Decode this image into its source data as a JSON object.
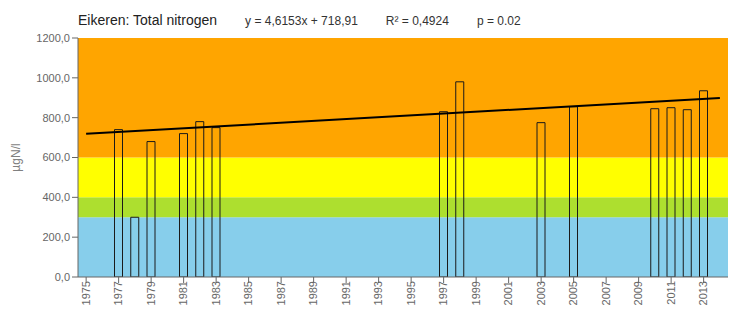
{
  "chart_data": {
    "type": "bar",
    "title": "Eikeren: Total nitrogen",
    "annotations": [
      "y = 4,6153x + 718,91",
      "R² = 0,4924",
      "p = 0.02"
    ],
    "ylabel": "µgN/l",
    "xlim": [
      1974.5,
      2014.5
    ],
    "xticks": [
      1975,
      1977,
      1979,
      1981,
      1983,
      1985,
      1987,
      1989,
      1991,
      1993,
      1995,
      1997,
      1999,
      2001,
      2003,
      2005,
      2007,
      2009,
      2011,
      2013
    ],
    "ylim": [
      0,
      1200
    ],
    "yticks": [
      {
        "value": 0,
        "label": "0,0"
      },
      {
        "value": 200,
        "label": "200,0"
      },
      {
        "value": 400,
        "label": "400,0"
      },
      {
        "value": 600,
        "label": "600,0"
      },
      {
        "value": 800,
        "label": "800,0"
      },
      {
        "value": 1000,
        "label": "1000,0"
      },
      {
        "value": 1200,
        "label": "1200,0"
      }
    ],
    "series": [
      {
        "type": "bar",
        "x": [
          1977,
          1978,
          1979,
          1981,
          1982,
          1983,
          1997,
          1998,
          2003,
          2005,
          2010,
          2011,
          2012,
          2013
        ],
        "values": [
          740,
          300,
          680,
          720,
          780,
          750,
          830,
          980,
          775,
          855,
          845,
          850,
          840,
          935
        ],
        "color": "#1a1a1a"
      },
      {
        "type": "line",
        "x": [
          1975,
          2014
        ],
        "values": [
          718.91,
          898.9067
        ],
        "color": "#000000"
      }
    ],
    "bands": [
      {
        "y0": 0,
        "y1": 300,
        "color": "#87CEEB"
      },
      {
        "y0": 300,
        "y1": 400,
        "color": "#ADDF2F"
      },
      {
        "y0": 400,
        "y1": 600,
        "color": "#FFFF00"
      },
      {
        "y0": 600,
        "y1": 1200,
        "color": "#FFA500"
      }
    ]
  }
}
